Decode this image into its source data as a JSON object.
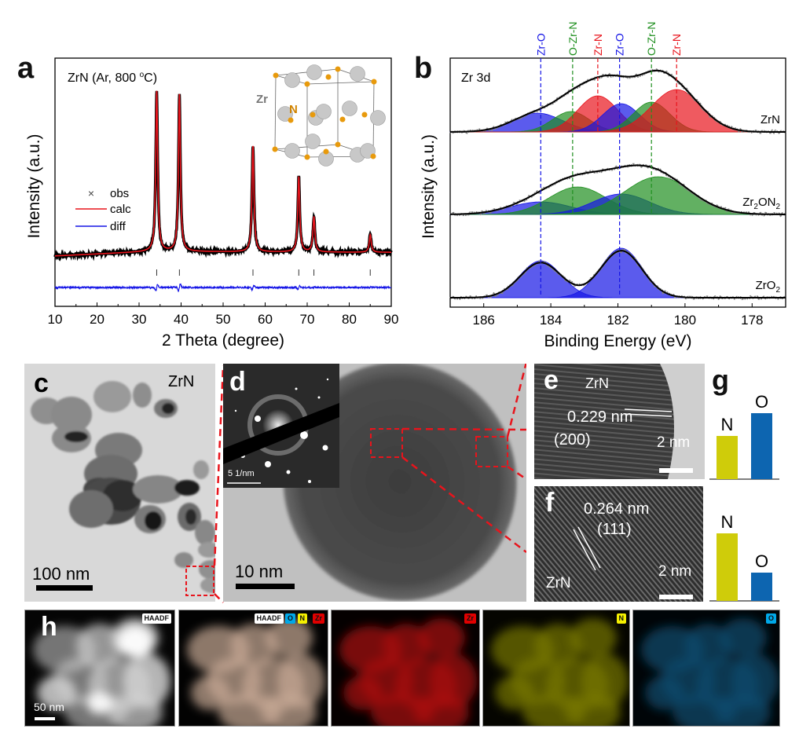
{
  "panels": {
    "a": {
      "letter": "a"
    },
    "b": {
      "letter": "b"
    },
    "c": {
      "letter": "c",
      "label": "ZrN",
      "scale": "100 nm"
    },
    "d": {
      "letter": "d",
      "inset_scale": "5 1/nm",
      "scale": "10 nm"
    },
    "e": {
      "letter": "e",
      "material": "ZrN",
      "spacing": "0.229 nm",
      "plane": "(200)",
      "scale": "2 nm"
    },
    "f": {
      "letter": "f",
      "material": "ZrN",
      "spacing": "0.264 nm",
      "plane": "(111)",
      "scale": "2 nm"
    },
    "g": {
      "letter": "g"
    },
    "h": {
      "letter": "h",
      "scale": "50 nm",
      "maps": [
        {
          "tags": [
            {
              "text": "HAADF",
              "bg": "#ffffff",
              "fg": "#111111"
            }
          ]
        },
        {
          "tags": [
            {
              "text": "HAADF",
              "bg": "#ffffff",
              "fg": "#111111"
            },
            {
              "text": "O",
              "bg": "#00a8e8",
              "fg": "#111111"
            },
            {
              "text": "N",
              "bg": "#f5f000",
              "fg": "#111111"
            },
            {
              "text": "Zr",
              "bg": "#e00000",
              "fg": "#111111"
            }
          ]
        },
        {
          "tags": [
            {
              "text": "Zr",
              "bg": "#e00000",
              "fg": "#111111"
            }
          ]
        },
        {
          "tags": [
            {
              "text": "N",
              "bg": "#f5f000",
              "fg": "#111111"
            }
          ]
        },
        {
          "tags": [
            {
              "text": "O",
              "bg": "#00a8e8",
              "fg": "#111111"
            }
          ]
        }
      ]
    }
  },
  "colors": {
    "red": "#e8141c",
    "blue": "#1515e6",
    "green": "#1f8f1f",
    "n_bar": "#cfcc0a",
    "o_bar": "#0d65b0"
  },
  "chart_data": [
    {
      "type": "line",
      "title": "ZrN (Ar, 800 °C)",
      "xlabel": "2 Theta (degree)",
      "ylabel": "Intensity (a.u.)",
      "xlim": [
        10,
        90
      ],
      "xticks": [
        10,
        20,
        30,
        40,
        50,
        60,
        70,
        80,
        90
      ],
      "legend": [
        "obs",
        "calc",
        "diff"
      ],
      "legend_position": "left",
      "peaks": [
        {
          "x": 34.2,
          "intensity": 100
        },
        {
          "x": 39.6,
          "intensity": 98
        },
        {
          "x": 57.1,
          "intensity": 66
        },
        {
          "x": 68.0,
          "intensity": 47
        },
        {
          "x": 71.6,
          "intensity": 22
        },
        {
          "x": 85.0,
          "intensity": 11
        }
      ],
      "bragg_positions": [
        34.2,
        39.6,
        57.1,
        68.0,
        71.6,
        85.0
      ],
      "inset": {
        "labels": [
          "Zr",
          "N"
        ]
      }
    },
    {
      "type": "area",
      "title": "Zr 3d",
      "xlabel": "Binding Energy (eV)",
      "ylabel": "Intensity (a.u.)",
      "xlim": [
        187,
        177
      ],
      "xticks": [
        186,
        184,
        182,
        180,
        178
      ],
      "reference_lines": [
        {
          "label": "Zr-O",
          "x": 184.3,
          "color": "blue"
        },
        {
          "label": "O-Zr-N",
          "x": 183.35,
          "color": "green"
        },
        {
          "label": "Zr-N",
          "x": 182.6,
          "color": "red"
        },
        {
          "label": "Zr-O",
          "x": 181.95,
          "color": "blue"
        },
        {
          "label": "O-Zr-N",
          "x": 181.0,
          "color": "green"
        },
        {
          "label": "Zr-N",
          "x": 180.25,
          "color": "red"
        }
      ],
      "series": [
        {
          "name": "ZrN",
          "sub": "",
          "components": [
            {
              "color": "blue",
              "center": 184.4,
              "height": 24,
              "width": 0.75
            },
            {
              "color": "green",
              "center": 183.4,
              "height": 26,
              "width": 0.55
            },
            {
              "color": "red",
              "center": 182.6,
              "height": 46,
              "width": 0.6
            },
            {
              "color": "blue",
              "center": 181.9,
              "height": 36,
              "width": 0.55
            },
            {
              "color": "green",
              "center": 181.0,
              "height": 38,
              "width": 0.55
            },
            {
              "color": "red",
              "center": 180.25,
              "height": 54,
              "width": 0.75
            }
          ]
        },
        {
          "name": "Zr",
          "sub_parts": [
            "Zr",
            "2",
            "ON",
            "2"
          ],
          "components": [
            {
              "color": "blue",
              "center": 184.3,
              "height": 16,
              "width": 0.9
            },
            {
              "color": "green",
              "center": 183.2,
              "height": 35,
              "width": 0.85
            },
            {
              "color": "blue",
              "center": 181.9,
              "height": 26,
              "width": 0.85
            },
            {
              "color": "green",
              "center": 180.8,
              "height": 48,
              "width": 1.0
            }
          ]
        },
        {
          "name": "ZrO",
          "sub_parts": [
            "ZrO",
            "2"
          ],
          "components": [
            {
              "color": "blue",
              "center": 184.3,
              "height": 47,
              "width": 0.62
            },
            {
              "color": "blue",
              "center": 181.9,
              "height": 63,
              "width": 0.62
            }
          ]
        }
      ]
    },
    {
      "type": "bar",
      "title": "",
      "categories": [
        "N",
        "O"
      ],
      "series": [
        {
          "name": "e",
          "values": [
            0.55,
            0.84
          ]
        },
        {
          "name": "f",
          "values": [
            0.86,
            0.36
          ]
        }
      ],
      "ylim": [
        0,
        1
      ]
    }
  ]
}
